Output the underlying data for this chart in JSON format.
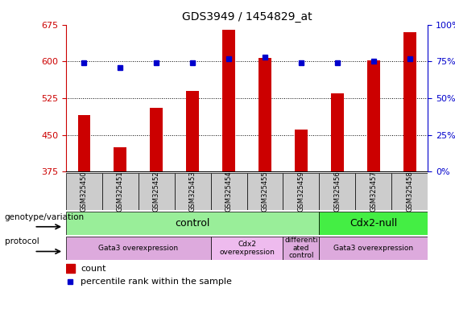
{
  "title": "GDS3949 / 1454829_at",
  "samples": [
    "GSM325450",
    "GSM325451",
    "GSM325452",
    "GSM325453",
    "GSM325454",
    "GSM325455",
    "GSM325459",
    "GSM325456",
    "GSM325457",
    "GSM325458"
  ],
  "count_values": [
    490,
    425,
    505,
    540,
    665,
    607,
    460,
    535,
    602,
    660
  ],
  "percentile_values": [
    74,
    71,
    74,
    74,
    77,
    78,
    74,
    74,
    75,
    77
  ],
  "ylim_left": [
    375,
    675
  ],
  "ylim_right": [
    0,
    100
  ],
  "yticks_left": [
    375,
    450,
    525,
    600,
    675
  ],
  "yticks_right": [
    0,
    25,
    50,
    75,
    100
  ],
  "bar_color": "#cc0000",
  "dot_color": "#0000cc",
  "left_axis_color": "#cc0000",
  "right_axis_color": "#0000cc",
  "title_fontsize": 10,
  "tick_fontsize": 8,
  "sample_bg": "#cccccc",
  "genotype_control_color": "#99ee99",
  "genotype_cdx2_color": "#44ee44",
  "protocol_gata3_color": "#ddaadd",
  "protocol_cdx2_color": "#eebbee",
  "protocol_diff_color": "#ddaadd",
  "genotype_label": "genotype/variation",
  "protocol_label": "protocol",
  "genotype_control_text": "control",
  "genotype_cdx2_text": "Cdx2-null",
  "protocol_gata3_text": "Gata3 overexpression",
  "protocol_cdx2_text": "Cdx2\noverexpression",
  "protocol_diff_text": "differenti\nated\ncontrol",
  "protocol_gata3b_text": "Gata3 overexpression",
  "legend_count": "count",
  "legend_pct": "percentile rank within the sample"
}
